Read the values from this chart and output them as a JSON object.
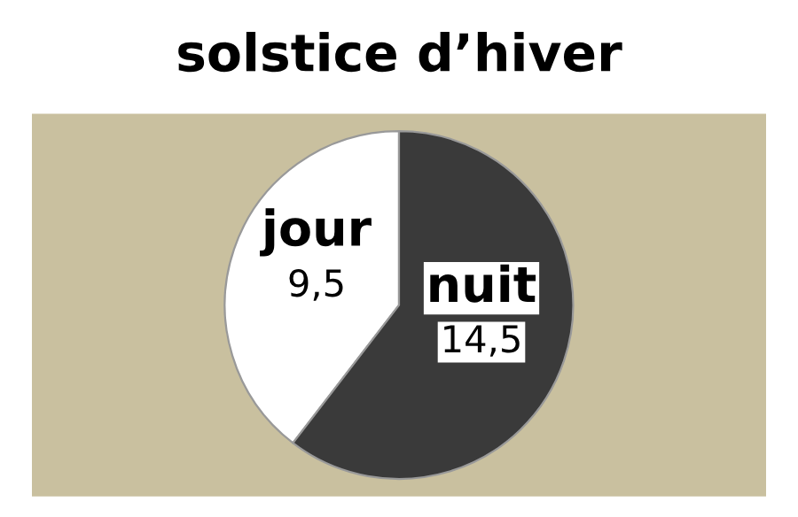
{
  "chart_data": {
    "type": "pie",
    "title": "solstice d’hiver",
    "categories": [
      "jour",
      "nuit"
    ],
    "values": [
      9.5,
      14.5
    ],
    "value_labels": [
      "9,5",
      "14,5"
    ],
    "colors": [
      "#ffffff",
      "#3a3a3a"
    ]
  }
}
